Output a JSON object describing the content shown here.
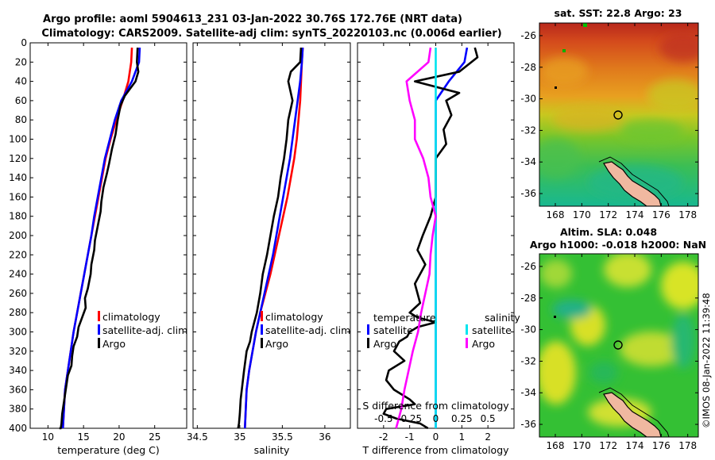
{
  "title_line1": "Argo profile: aoml 5904613_231 03-Jan-2022 30.76S 172.76E (NRT data)",
  "title_line2": "Climatology: CARS2009. Satellite-adj clim: synTS_20220103.nc (0.006d earlier)",
  "timestamp_label": "©IMOS 08-Jan-2022 11:39:48",
  "colors": {
    "climatology": "#ff0000",
    "satellite": "#0000ff",
    "argo": "#000000",
    "sat_s": "#00e5ee",
    "argo_s": "#ff00ff"
  },
  "chart_data": [
    {
      "id": "temperature",
      "type": "line",
      "xlabel": "temperature (deg C)",
      "ylabel": "",
      "xlim": [
        7.5,
        29.5
      ],
      "ylim": [
        400,
        0
      ],
      "xticks": [
        10,
        15,
        20,
        25
      ],
      "yticks": [
        0,
        20,
        40,
        60,
        80,
        100,
        120,
        140,
        160,
        180,
        200,
        220,
        240,
        260,
        280,
        300,
        320,
        340,
        360,
        380,
        400
      ],
      "legend": [
        "climatology",
        "satellite-adj. clim",
        "Argo"
      ],
      "series": [
        {
          "name": "climatology",
          "color": "#ff0000",
          "x": [
            21.8,
            21.7,
            21.3,
            20.5,
            19.6,
            18.8,
            18.1,
            17.6,
            17.1,
            16.6,
            16.1,
            15.6,
            15.1,
            14.6,
            14.1,
            13.6,
            13.2,
            12.8,
            12.4,
            12.1
          ],
          "y": [
            5,
            20,
            40,
            60,
            80,
            100,
            120,
            140,
            160,
            180,
            200,
            220,
            240,
            260,
            280,
            300,
            320,
            340,
            360,
            400
          ]
        },
        {
          "name": "satellite-adj. clim",
          "color": "#0000ff",
          "x": [
            22.9,
            22.8,
            21.8,
            20.3,
            19.4,
            18.7,
            18.0,
            17.5,
            17.0,
            16.5,
            16.1,
            15.6,
            15.1,
            14.6,
            14.1,
            13.6,
            13.2,
            12.8,
            12.4,
            12.1
          ],
          "y": [
            5,
            20,
            40,
            60,
            80,
            100,
            120,
            140,
            160,
            180,
            200,
            220,
            240,
            260,
            280,
            300,
            320,
            340,
            360,
            400
          ]
        },
        {
          "name": "Argo",
          "color": "#000000",
          "x": [
            22.6,
            22.5,
            22.7,
            22.3,
            20.8,
            20.2,
            19.8,
            19.5,
            19.0,
            18.6,
            18.3,
            17.8,
            17.5,
            17.4,
            17.0,
            16.6,
            16.5,
            16.1,
            16.0,
            15.6,
            15.2,
            15.3,
            14.8,
            14.3,
            14.1,
            13.6,
            13.4,
            13.3,
            12.8,
            12.6,
            12.4,
            12.2,
            12.0,
            11.9,
            11.8,
            11.7,
            11.6
          ],
          "y": [
            5,
            20,
            30,
            40,
            55,
            65,
            80,
            95,
            110,
            125,
            135,
            150,
            165,
            175,
            190,
            205,
            215,
            230,
            240,
            255,
            265,
            275,
            285,
            295,
            305,
            315,
            325,
            335,
            345,
            355,
            365,
            375,
            385,
            395,
            400,
            400,
            400
          ]
        }
      ]
    },
    {
      "id": "salinity",
      "type": "line",
      "xlabel": "salinity",
      "xlim": [
        34.45,
        36.3
      ],
      "ylim": [
        400,
        0
      ],
      "xticks": [
        34.5,
        35,
        35.5,
        36
      ],
      "xticklabels": [
        "34.5",
        "35",
        "35.5",
        "36"
      ],
      "legend": [
        "climatology",
        "satellite-adj. clim",
        "Argo"
      ],
      "series": [
        {
          "name": "climatology",
          "color": "#ff0000",
          "x": [
            35.74,
            35.73,
            35.72,
            35.71,
            35.69,
            35.67,
            35.64,
            35.6,
            35.56,
            35.51,
            35.46,
            35.41,
            35.36,
            35.3,
            35.24,
            35.19,
            35.15,
            35.11,
            35.08,
            35.06
          ],
          "y": [
            5,
            20,
            40,
            60,
            80,
            100,
            120,
            140,
            160,
            180,
            200,
            220,
            240,
            260,
            280,
            300,
            320,
            340,
            360,
            400
          ]
        },
        {
          "name": "satellite-adj. clim",
          "color": "#0000ff",
          "x": [
            35.74,
            35.73,
            35.71,
            35.68,
            35.65,
            35.62,
            35.59,
            35.55,
            35.51,
            35.47,
            35.43,
            35.39,
            35.34,
            35.29,
            35.24,
            35.19,
            35.15,
            35.11,
            35.08,
            35.06
          ],
          "y": [
            5,
            20,
            40,
            60,
            80,
            100,
            120,
            140,
            160,
            180,
            200,
            220,
            240,
            260,
            280,
            300,
            320,
            340,
            360,
            400
          ]
        },
        {
          "name": "Argo",
          "color": "#000000",
          "x": [
            35.72,
            35.71,
            35.6,
            35.57,
            35.62,
            35.57,
            35.55,
            35.52,
            35.48,
            35.45,
            35.4,
            35.36,
            35.32,
            35.27,
            35.24,
            35.2,
            35.17,
            35.14,
            35.12,
            35.08,
            35.05,
            35.03,
            35.01,
            35.0,
            34.99,
            34.98
          ],
          "y": [
            5,
            20,
            30,
            40,
            60,
            80,
            100,
            120,
            140,
            160,
            180,
            200,
            220,
            240,
            260,
            280,
            290,
            300,
            310,
            320,
            340,
            355,
            370,
            385,
            395,
            400
          ]
        }
      ]
    },
    {
      "id": "differences",
      "type": "line",
      "xlabel": "T difference from climatology",
      "xlim": [
        -3,
        3
      ],
      "ylim": [
        400,
        0
      ],
      "xticks": [
        -2,
        -1,
        0,
        1,
        2
      ],
      "s_axis_label": "S difference from climatology",
      "s_ticks": [
        "-0.5",
        "-0.25",
        "0",
        "0.25",
        "0.5"
      ],
      "legend_groups": [
        {
          "title": "temperature",
          "items": [
            "satellite",
            "Argo"
          ]
        },
        {
          "title": "salinity",
          "items": [
            "satellite",
            "Argo"
          ]
        }
      ],
      "series": [
        {
          "name": "temperature satellite",
          "color": "#0000ff",
          "x": [
            1.2,
            1.1,
            0.5,
            0.0,
            0.0,
            0.0,
            0.0,
            0.0,
            0.0,
            0.0,
            0.0,
            0.0,
            0.0,
            0.0,
            0.0,
            0.0,
            0.0,
            0.0,
            0.0,
            0.0,
            0.0
          ],
          "y": [
            5,
            20,
            40,
            60,
            80,
            100,
            120,
            140,
            160,
            180,
            200,
            220,
            240,
            260,
            280,
            300,
            320,
            340,
            360,
            380,
            400
          ]
        },
        {
          "name": "temperature Argo",
          "color": "#000000",
          "x": [
            1.5,
            1.6,
            0.9,
            -0.8,
            0.9,
            0.4,
            0.6,
            0.3,
            0.4,
            0.0,
            0.0,
            0.0,
            -0.2,
            -0.5,
            -0.7,
            -0.4,
            -0.6,
            -0.8,
            -0.7,
            -0.6,
            -0.8,
            -1.0,
            -0.7,
            0.0,
            -0.7,
            -1.0,
            -1.1,
            -1.4,
            -1.6,
            -1.2,
            -1.8,
            -1.9,
            -1.6,
            -1.0,
            -0.8,
            -1.9,
            -2.0,
            -1.5,
            -0.6,
            -0.3
          ],
          "y": [
            5,
            15,
            30,
            40,
            52,
            60,
            75,
            90,
            105,
            120,
            140,
            160,
            180,
            200,
            215,
            230,
            240,
            250,
            260,
            270,
            275,
            280,
            285,
            290,
            295,
            300,
            305,
            310,
            320,
            330,
            340,
            350,
            360,
            370,
            375,
            380,
            385,
            390,
            395,
            400
          ]
        },
        {
          "name": "salinity satellite",
          "color": "#00e5ee",
          "x": [
            0.0,
            0.0,
            0.0,
            0.0,
            0.0,
            0.0,
            0.0,
            0.0,
            0.0,
            0.0,
            0.0,
            0.0,
            0.0,
            0.0,
            0.0,
            0.0,
            0.0,
            0.0,
            0.0,
            0.0,
            0.0
          ],
          "y": [
            5,
            20,
            40,
            60,
            80,
            100,
            120,
            140,
            160,
            180,
            200,
            220,
            240,
            260,
            280,
            300,
            320,
            340,
            360,
            380,
            400
          ]
        },
        {
          "name": "salinity Argo",
          "color": "#ff00ff",
          "x": [
            -0.05,
            -0.07,
            -0.28,
            -0.25,
            -0.2,
            -0.2,
            -0.12,
            -0.07,
            -0.05,
            0.0,
            -0.03,
            -0.05,
            -0.06,
            -0.1,
            -0.14,
            -0.17,
            -0.22,
            -0.26,
            -0.3,
            -0.33,
            -0.38
          ],
          "y": [
            5,
            20,
            40,
            60,
            80,
            100,
            120,
            140,
            160,
            180,
            200,
            220,
            240,
            260,
            280,
            300,
            320,
            340,
            360,
            380,
            400
          ]
        }
      ]
    },
    {
      "id": "sst_map",
      "type": "heatmap",
      "title": "sat. SST: 22.8 Argo: 23",
      "xlim": [
        166.8,
        178.8
      ],
      "ylim": [
        -36.8,
        -25.2
      ],
      "xticks": [
        168,
        170,
        172,
        174,
        176,
        178
      ],
      "yticks": [
        -26,
        -28,
        -30,
        -32,
        -34,
        -36
      ],
      "float_position": [
        172.76,
        -30.76
      ]
    },
    {
      "id": "sla_map",
      "type": "heatmap",
      "title_line1": "Altim. SLA: 0.048",
      "title_line2": "Argo h1000: -0.018 h2000: NaN",
      "xlim": [
        166.8,
        178.8
      ],
      "ylim": [
        -36.8,
        -25.2
      ],
      "xticks": [
        168,
        170,
        172,
        174,
        176,
        178
      ],
      "yticks": [
        -26,
        -28,
        -30,
        -32,
        -34,
        -36
      ],
      "float_position": [
        172.76,
        -30.76
      ]
    }
  ]
}
